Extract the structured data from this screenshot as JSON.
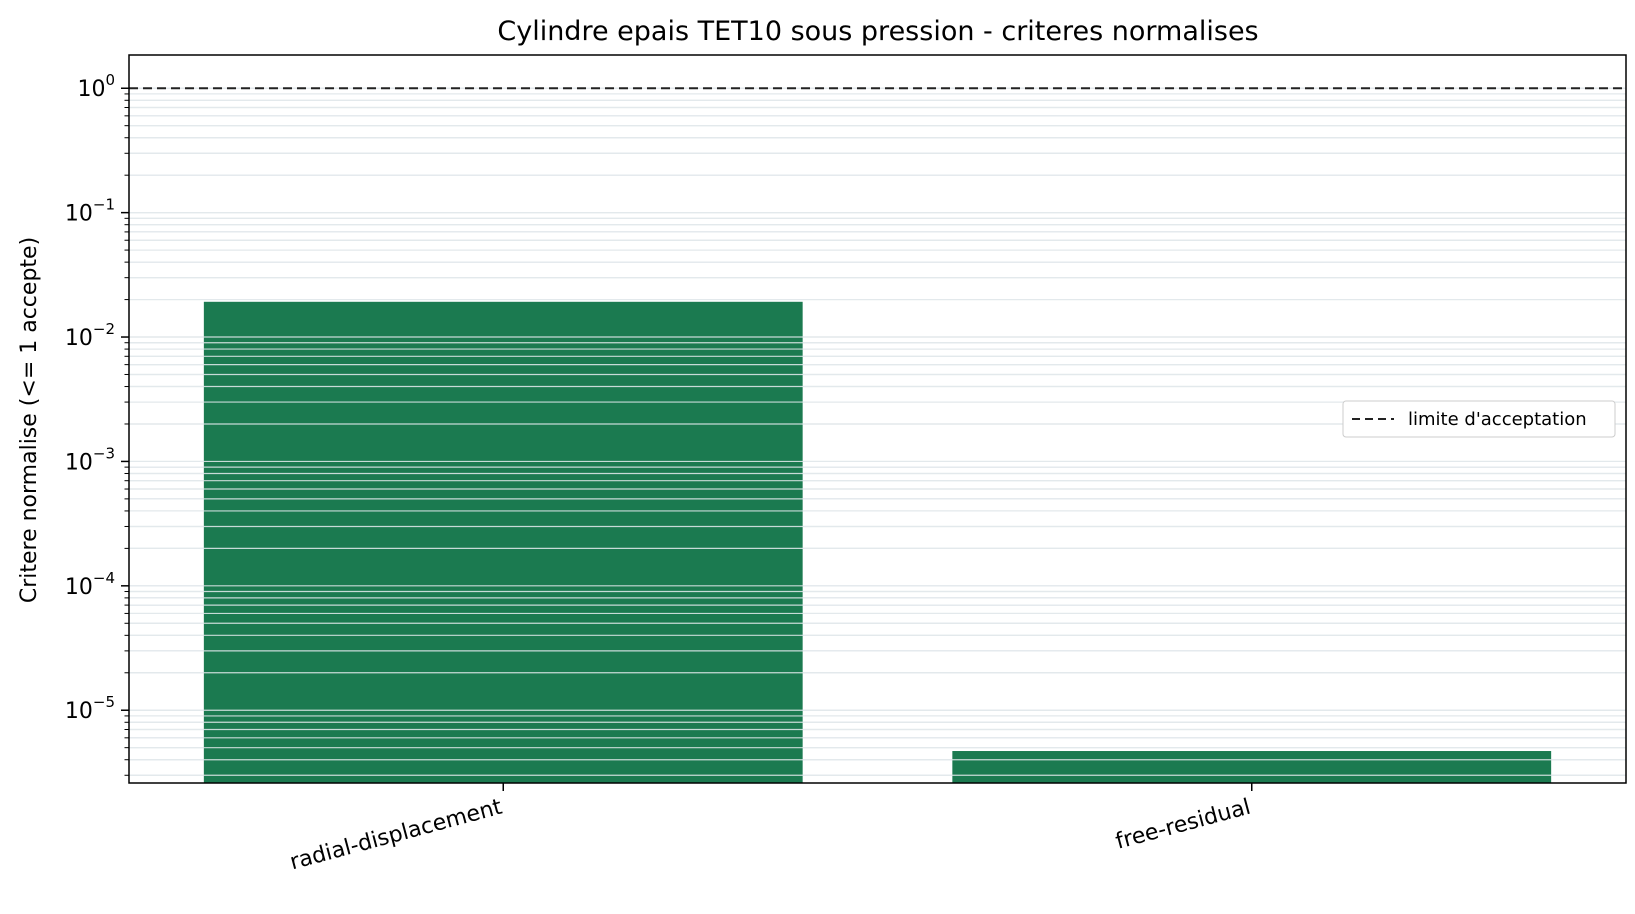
{
  "chart_data": {
    "type": "bar",
    "title": "Cylindre epais TET10 sous pression - criteres normalises",
    "xlabel": "",
    "ylabel": "Critere normalise (<= 1 accepte)",
    "yscale": "log",
    "ylim": [
      2.6e-06,
      1.85
    ],
    "categories": [
      "radial-displacement",
      "free-residual"
    ],
    "values": [
      0.0192,
      4.7e-06
    ],
    "reference_line": {
      "value": 1,
      "label": "limite d'acceptation",
      "style": "dashed"
    },
    "y_ticks": [
      {
        "base": "10",
        "exp": "0",
        "value": 1
      },
      {
        "base": "10",
        "exp": "−1",
        "value": 0.1
      },
      {
        "base": "10",
        "exp": "−2",
        "value": 0.01
      },
      {
        "base": "10",
        "exp": "−3",
        "value": 0.001
      },
      {
        "base": "10",
        "exp": "−4",
        "value": 0.0001
      },
      {
        "base": "10",
        "exp": "−5",
        "value": 1e-05
      }
    ],
    "grid": true,
    "legend_position": "center-right",
    "colors": {
      "bar": "#1b7a50",
      "grid": "#d3dbe0",
      "reference": "#222222"
    }
  }
}
